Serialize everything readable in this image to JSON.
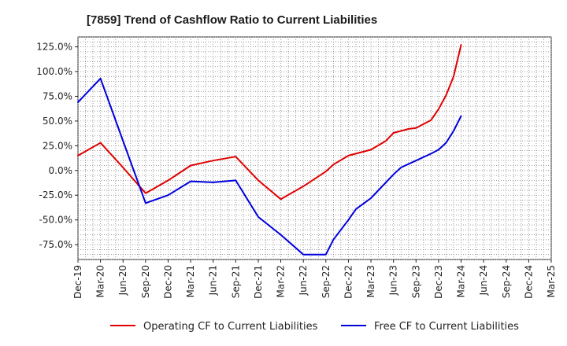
{
  "chart_data": {
    "type": "line",
    "title": "[7859]  Trend of Cashflow Ratio to Current Liabilities",
    "x_ticks": [
      "Dec-19",
      "Mar-20",
      "Jun-20",
      "Sep-20",
      "Dec-20",
      "Mar-21",
      "Jun-21",
      "Sep-21",
      "Dec-21",
      "Mar-22",
      "Jun-22",
      "Sep-22",
      "Dec-22",
      "Mar-23",
      "Jun-23",
      "Sep-23",
      "Dec-23",
      "Mar-24",
      "Jun-24",
      "Sep-24",
      "Dec-24",
      "Mar-25"
    ],
    "y_ticks": [
      125.0,
      100.0,
      75.0,
      50.0,
      25.0,
      0.0,
      -25.0,
      -50.0,
      -75.0
    ],
    "y_tick_labels": [
      "125.0%",
      "100.0%",
      "75.0%",
      "50.0%",
      "25.0%",
      "0.0%",
      "-25.0%",
      "-50.0%",
      "-75.0%"
    ],
    "ylim": [
      -90,
      135
    ],
    "grid": true,
    "legend_position": "bottom",
    "series": [
      {
        "name": "Operating CF to Current Liabilities",
        "color": "#e00000",
        "points": [
          [
            "Dec-19",
            15
          ],
          [
            "Mar-20",
            28
          ],
          [
            "Jun-20",
            3
          ],
          [
            "Sep-20",
            -23
          ],
          [
            "Dec-20",
            -10
          ],
          [
            "Mar-21",
            5
          ],
          [
            "Jun-21",
            10
          ],
          [
            "Sep-21",
            14
          ],
          [
            "Dec-21",
            -10
          ],
          [
            "Mar-22",
            -29
          ],
          [
            "Jun-22",
            -16
          ],
          [
            "Sep-22",
            -1
          ],
          [
            "Oct-22",
            6
          ],
          [
            "Dec-22",
            15
          ],
          [
            "Mar-23",
            21
          ],
          [
            "May-23",
            30
          ],
          [
            "Jun-23",
            38
          ],
          [
            "Aug-23",
            42
          ],
          [
            "Sep-23",
            43
          ],
          [
            "Nov-23",
            51
          ],
          [
            "Dec-23",
            62
          ],
          [
            "Jan-24",
            76
          ],
          [
            "Feb-24",
            95
          ],
          [
            "Mar-24",
            127
          ]
        ]
      },
      {
        "name": "Free CF to Current Liabilities",
        "color": "#0000dd",
        "points": [
          [
            "Dec-19",
            69
          ],
          [
            "Mar-20",
            93
          ],
          [
            "Jun-20",
            30
          ],
          [
            "Sep-20",
            -33
          ],
          [
            "Dec-20",
            -25
          ],
          [
            "Mar-21",
            -11
          ],
          [
            "Jun-21",
            -12
          ],
          [
            "Sep-21",
            -10
          ],
          [
            "Dec-21",
            -47
          ],
          [
            "Mar-22",
            -65
          ],
          [
            "Jun-22",
            -85
          ],
          [
            "Sep-22",
            -85
          ],
          [
            "Oct-22",
            -70
          ],
          [
            "Dec-22",
            -50
          ],
          [
            "Jan-23",
            -39
          ],
          [
            "Mar-23",
            -28
          ],
          [
            "Jun-23",
            -4
          ],
          [
            "Jul-23",
            3
          ],
          [
            "Sep-23",
            10
          ],
          [
            "Nov-23",
            17
          ],
          [
            "Dec-23",
            21
          ],
          [
            "Jan-24",
            28
          ],
          [
            "Feb-24",
            40
          ],
          [
            "Mar-24",
            55
          ]
        ]
      }
    ]
  }
}
